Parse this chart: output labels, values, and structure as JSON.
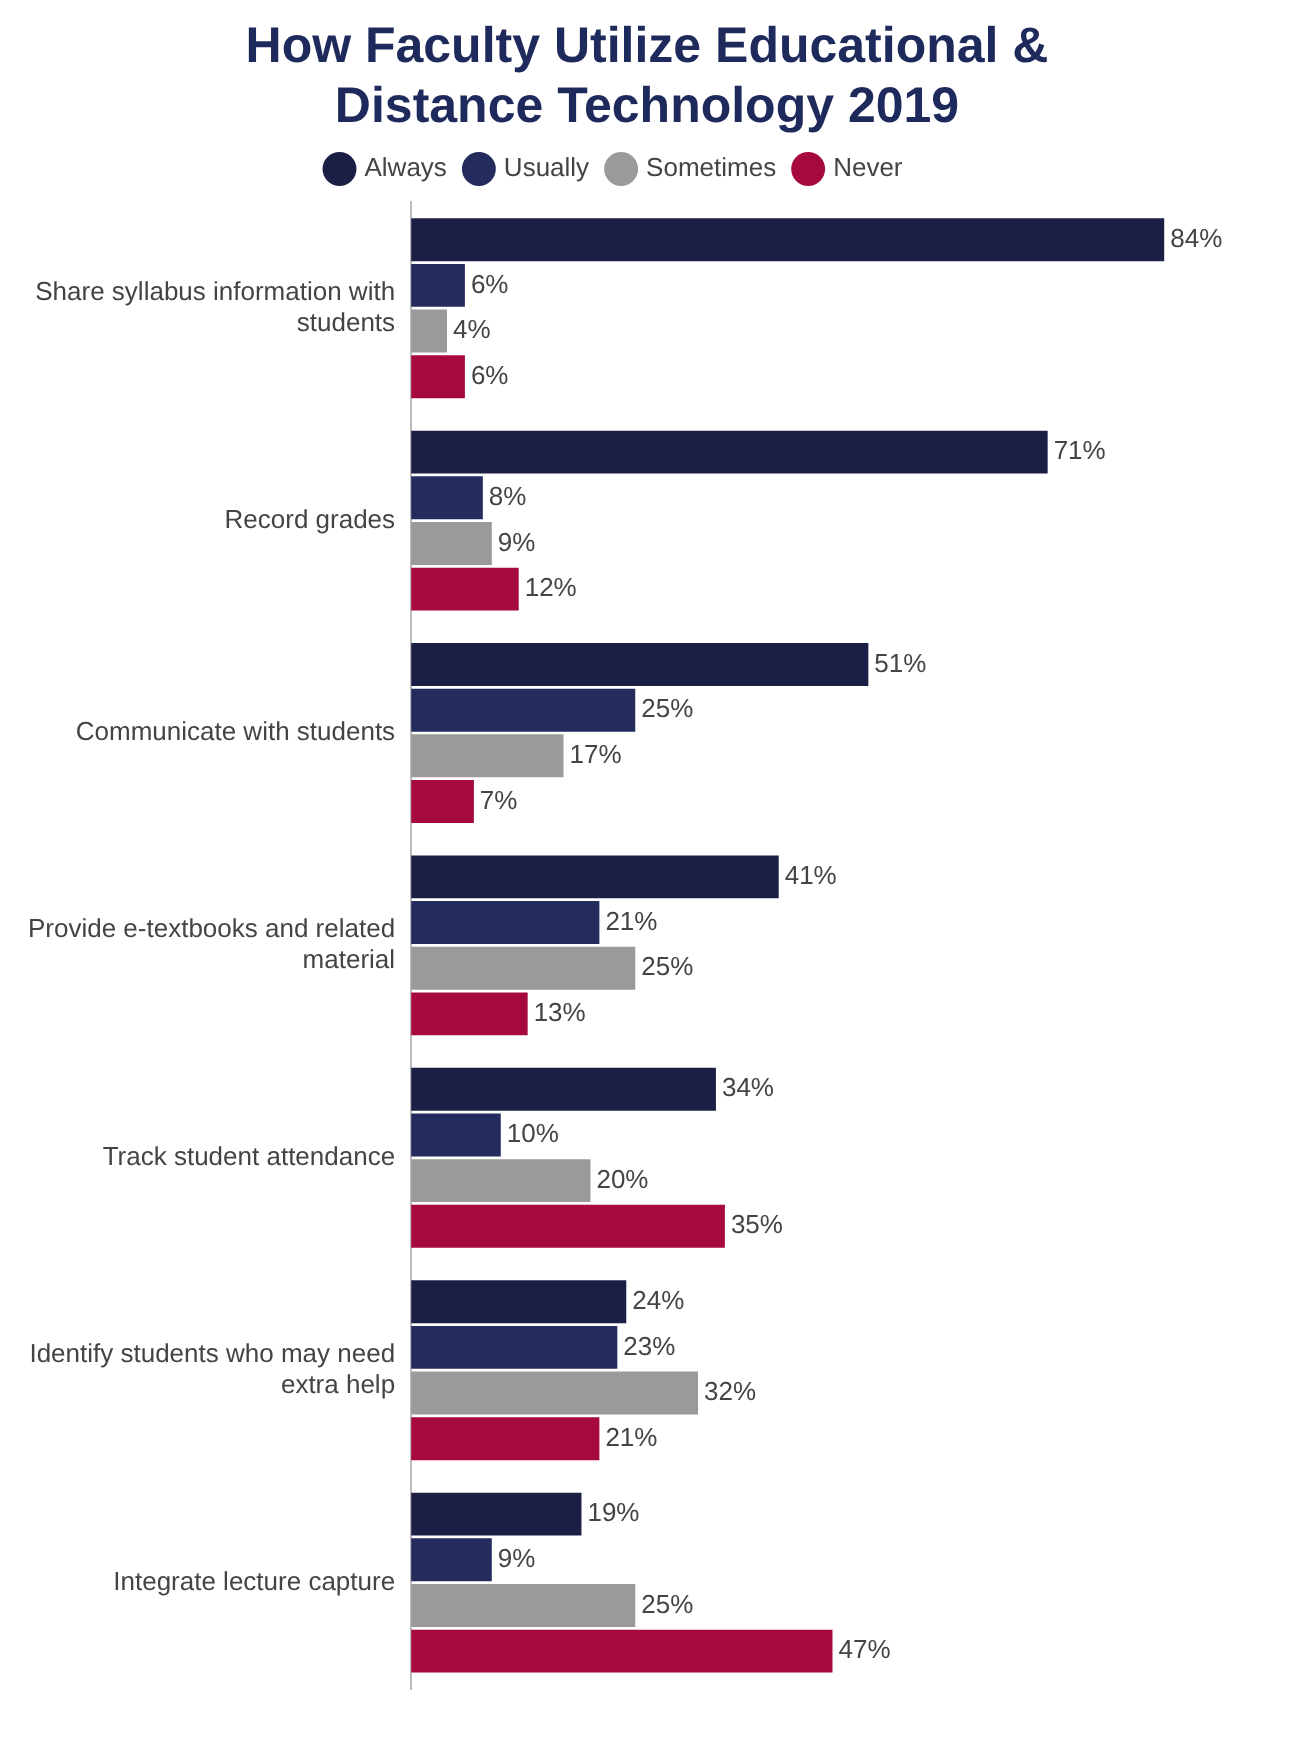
{
  "chart_data": {
    "type": "bar",
    "orientation": "horizontal",
    "title": "How Faculty Utilize Educational & Distance Technology 2019",
    "categories": [
      "Share syllabus information with students",
      "Record grades",
      "Communicate with students",
      "Provide e-textbooks and related material",
      "Track student attendance",
      "Identify students who may need extra help",
      "Integrate lecture capture"
    ],
    "series": [
      {
        "name": "Always",
        "color": "#1c1f45",
        "values": [
          84,
          71,
          51,
          41,
          34,
          24,
          19
        ],
        "value_labels": [
          "84%",
          "71%",
          "51%",
          "41%",
          "34%",
          "24%",
          "19%"
        ]
      },
      {
        "name": "Usually",
        "color": "#242c5e",
        "values": [
          6,
          8,
          25,
          21,
          10,
          23,
          9
        ],
        "value_labels": [
          "6%",
          "8%",
          "25%",
          "21%",
          "10%",
          "23%",
          "9%"
        ]
      },
      {
        "name": "Sometimes",
        "color": "#9a9a9a",
        "values": [
          4,
          9,
          17,
          25,
          20,
          32,
          25
        ],
        "value_labels": [
          "4%",
          "9%",
          "17%",
          "25%",
          "20%",
          "32%",
          "25%"
        ]
      },
      {
        "name": "Never",
        "color": "#a60a3d",
        "values": [
          6,
          12,
          7,
          13,
          35,
          21,
          47
        ],
        "value_labels": [
          "6%",
          "12%",
          "7%",
          "13%",
          "35%",
          "21%",
          "47%"
        ]
      }
    ],
    "legend": "top",
    "grid": false
  }
}
